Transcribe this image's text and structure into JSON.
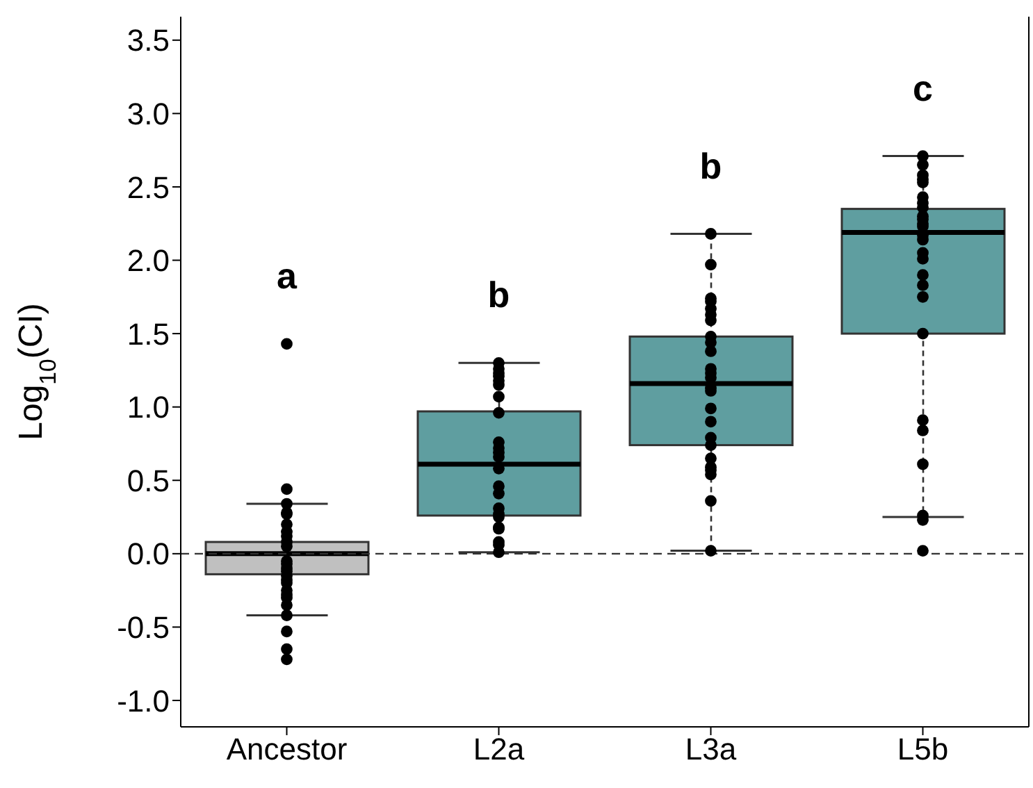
{
  "chart_data": {
    "type": "box",
    "ylabel": "Log$_{10}$(CI)",
    "categories": [
      "Ancestor",
      "L2a",
      "L3a",
      "L5b"
    ],
    "colors": [
      "#c0c0c0",
      "#5f9ea0",
      "#5f9ea0",
      "#5f9ea0"
    ],
    "boxes": [
      {
        "low": -0.42,
        "q1": -0.14,
        "median": 0.0,
        "q3": 0.08,
        "high": 0.34
      },
      {
        "low": 0.01,
        "q1": 0.26,
        "median": 0.61,
        "q3": 0.97,
        "high": 1.3
      },
      {
        "low": 0.02,
        "q1": 0.74,
        "median": 1.16,
        "q3": 1.48,
        "high": 2.18
      },
      {
        "low": 0.25,
        "q1": 1.5,
        "median": 2.19,
        "q3": 2.35,
        "high": 2.71
      }
    ],
    "series": [
      {
        "type": "scatter",
        "color": "#000000",
        "x": [
          "Ancestor",
          "Ancestor",
          "Ancestor",
          "Ancestor",
          "Ancestor",
          "Ancestor",
          "Ancestor",
          "Ancestor",
          "Ancestor",
          "Ancestor",
          "Ancestor",
          "Ancestor",
          "Ancestor",
          "Ancestor",
          "Ancestor",
          "Ancestor",
          "Ancestor",
          "Ancestor",
          "Ancestor",
          "Ancestor",
          "Ancestor",
          "Ancestor",
          "Ancestor",
          "Ancestor",
          "Ancestor",
          "L2a",
          "L2a",
          "L2a",
          "L2a",
          "L2a",
          "L2a",
          "L2a",
          "L2a",
          "L2a",
          "L2a",
          "L2a",
          "L2a",
          "L2a",
          "L2a",
          "L2a",
          "L2a",
          "L2a",
          "L2a",
          "L2a",
          "L2a",
          "L2a",
          "L2a",
          "L2a",
          "L3a",
          "L3a",
          "L3a",
          "L3a",
          "L3a",
          "L3a",
          "L3a",
          "L3a",
          "L3a",
          "L3a",
          "L3a",
          "L3a",
          "L3a",
          "L3a",
          "L3a",
          "L3a",
          "L3a",
          "L3a",
          "L3a",
          "L3a",
          "L3a",
          "L3a",
          "L3a",
          "L3a",
          "L3a",
          "L5b",
          "L5b",
          "L5b",
          "L5b",
          "L5b",
          "L5b",
          "L5b",
          "L5b",
          "L5b",
          "L5b",
          "L5b",
          "L5b",
          "L5b",
          "L5b",
          "L5b",
          "L5b",
          "L5b",
          "L5b",
          "L5b",
          "L5b",
          "L5b",
          "L5b",
          "L5b",
          "L5b",
          "L5b",
          "L5b"
        ],
        "values": [
          1.43,
          0.44,
          0.34,
          0.28,
          0.27,
          0.2,
          0.15,
          0.12,
          0.08,
          0.05,
          -0.05,
          -0.07,
          -0.1,
          -0.12,
          -0.15,
          -0.18,
          -0.2,
          -0.25,
          -0.28,
          -0.3,
          -0.35,
          -0.42,
          -0.53,
          -0.65,
          -0.72,
          1.3,
          1.26,
          1.23,
          1.21,
          1.18,
          1.15,
          1.07,
          0.96,
          0.76,
          0.72,
          0.69,
          0.66,
          0.58,
          0.46,
          0.41,
          0.31,
          0.27,
          0.25,
          0.18,
          0.17,
          0.08,
          0.06,
          0.01,
          2.18,
          1.97,
          1.74,
          1.72,
          1.67,
          1.63,
          1.59,
          1.48,
          1.44,
          1.38,
          1.26,
          1.23,
          1.2,
          1.13,
          1.11,
          0.99,
          0.9,
          0.79,
          0.74,
          0.65,
          0.59,
          0.57,
          0.54,
          0.36,
          0.02,
          2.71,
          2.65,
          2.58,
          2.55,
          2.53,
          2.43,
          2.39,
          2.36,
          2.3,
          2.28,
          2.25,
          2.23,
          2.17,
          2.14,
          2.05,
          2.01,
          1.9,
          1.83,
          1.75,
          1.5,
          0.91,
          0.84,
          0.61,
          0.26,
          0.23,
          0.02
        ]
      }
    ],
    "ylim": [
      -1.18,
      3.66
    ],
    "yticks": [
      {
        "value": -1.0,
        "label": "-1.0"
      },
      {
        "value": -0.5,
        "label": "-0.5"
      },
      {
        "value": 0,
        "label": "0.0"
      },
      {
        "value": 0.5,
        "label": "0.5"
      },
      {
        "value": 1.0,
        "label": "1.0"
      },
      {
        "value": 1.5,
        "label": "1.5"
      },
      {
        "value": 2.0,
        "label": "2.0"
      },
      {
        "value": 2.5,
        "label": "2.5"
      },
      {
        "value": 3.0,
        "label": "3.0"
      },
      {
        "value": 3.5,
        "label": "3.5"
      }
    ],
    "ref_lines": [
      {
        "axis": "y",
        "value": 0,
        "line_style": "dashed",
        "color": "#333333"
      }
    ],
    "annotations": [
      "a",
      "b",
      "b",
      "c"
    ],
    "grid": false,
    "marker": "circle"
  }
}
